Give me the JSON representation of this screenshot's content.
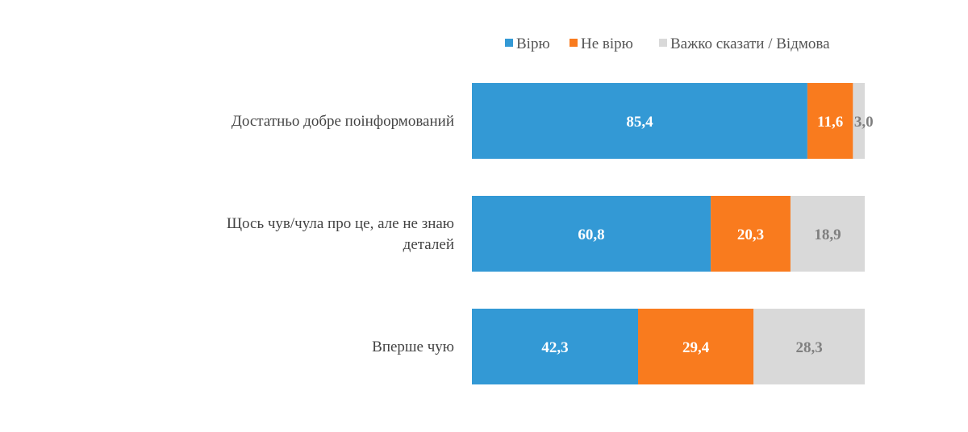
{
  "chart_data": {
    "type": "bar",
    "orientation": "horizontal",
    "stacked": true,
    "legend_position": "top-right",
    "grid": false,
    "xlim": [
      0,
      100
    ],
    "categories": [
      [
        "Достатньо добре поінформований"
      ],
      [
        "Щось чув/чула про це, але не знаю",
        "деталей"
      ],
      [
        "Вперше чую"
      ]
    ],
    "series": [
      {
        "name": "Вірю",
        "color": "#3399d5",
        "label_color": "#ffffff",
        "values": [
          85.4,
          60.8,
          42.3
        ],
        "labels": [
          "85,4",
          "60,8",
          "42,3"
        ]
      },
      {
        "name": "Не вірю",
        "color": "#f97b1e",
        "label_color": "#ffffff",
        "values": [
          11.6,
          20.3,
          29.4
        ],
        "labels": [
          "11,6",
          "20,3",
          "29,4"
        ]
      },
      {
        "name": "Важко сказати / Відмова",
        "color": "#d9d9d9",
        "label_color": "#7f7f7f",
        "values": [
          3.0,
          18.9,
          28.3
        ],
        "labels": [
          "3,0",
          "18,9",
          "28,3"
        ]
      }
    ]
  }
}
